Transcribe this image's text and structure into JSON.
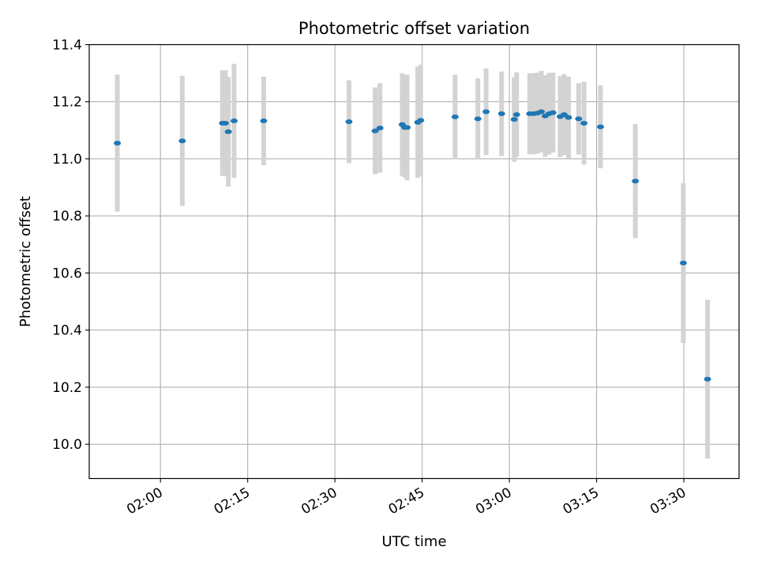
{
  "chart_data": {
    "type": "scatter",
    "title": "Photometric offset variation",
    "xlabel": "UTC time",
    "ylabel": "Photometric offset",
    "xlim": [
      "01:47:45",
      "03:39:30"
    ],
    "ylim": [
      9.88,
      11.4
    ],
    "x_ticks": [
      "02:00",
      "02:15",
      "02:30",
      "02:45",
      "03:00",
      "03:15",
      "03:30"
    ],
    "y_ticks": [
      "10.0",
      "10.2",
      "10.4",
      "10.6",
      "10.8",
      "11.0",
      "11.2",
      "11.4"
    ],
    "grid": true,
    "legend": "none",
    "point_color": "#1f77b4",
    "error_bar_color": "#d3d3d3",
    "points": [
      {
        "x": "01:52:35",
        "y": 11.055,
        "err": 0.24
      },
      {
        "x": "02:03:45",
        "y": 11.063,
        "err": 0.228
      },
      {
        "x": "02:10:40",
        "y": 11.125,
        "err": 0.185
      },
      {
        "x": "02:11:10",
        "y": 11.125,
        "err": 0.185
      },
      {
        "x": "02:11:40",
        "y": 11.095,
        "err": 0.192
      },
      {
        "x": "02:12:40",
        "y": 11.133,
        "err": 0.2
      },
      {
        "x": "02:17:45",
        "y": 11.133,
        "err": 0.155
      },
      {
        "x": "02:32:25",
        "y": 11.13,
        "err": 0.145
      },
      {
        "x": "02:36:55",
        "y": 11.098,
        "err": 0.152
      },
      {
        "x": "02:37:45",
        "y": 11.108,
        "err": 0.157
      },
      {
        "x": "02:41:35",
        "y": 11.12,
        "err": 0.18
      },
      {
        "x": "02:42:00",
        "y": 11.11,
        "err": 0.175
      },
      {
        "x": "02:42:25",
        "y": 11.11,
        "err": 0.185
      },
      {
        "x": "02:44:15",
        "y": 11.128,
        "err": 0.195
      },
      {
        "x": "02:44:45",
        "y": 11.135,
        "err": 0.195
      },
      {
        "x": "02:50:40",
        "y": 11.147,
        "err": 0.148
      },
      {
        "x": "02:54:35",
        "y": 11.14,
        "err": 0.142
      },
      {
        "x": "02:56:00",
        "y": 11.165,
        "err": 0.152
      },
      {
        "x": "02:58:40",
        "y": 11.158,
        "err": 0.148
      },
      {
        "x": "03:00:50",
        "y": 11.138,
        "err": 0.148
      },
      {
        "x": "03:01:15",
        "y": 11.155,
        "err": 0.148
      },
      {
        "x": "03:03:30",
        "y": 11.158,
        "err": 0.142
      },
      {
        "x": "03:04:10",
        "y": 11.158,
        "err": 0.142
      },
      {
        "x": "03:04:50",
        "y": 11.16,
        "err": 0.142
      },
      {
        "x": "03:05:30",
        "y": 11.165,
        "err": 0.143
      },
      {
        "x": "03:06:10",
        "y": 11.15,
        "err": 0.143
      },
      {
        "x": "03:06:50",
        "y": 11.158,
        "err": 0.143
      },
      {
        "x": "03:07:30",
        "y": 11.162,
        "err": 0.14
      },
      {
        "x": "03:08:45",
        "y": 11.148,
        "err": 0.142
      },
      {
        "x": "03:09:25",
        "y": 11.155,
        "err": 0.142
      },
      {
        "x": "03:10:10",
        "y": 11.145,
        "err": 0.143
      },
      {
        "x": "03:11:55",
        "y": 11.14,
        "err": 0.125
      },
      {
        "x": "03:12:50",
        "y": 11.125,
        "err": 0.145
      },
      {
        "x": "03:15:40",
        "y": 11.112,
        "err": 0.145
      },
      {
        "x": "03:21:40",
        "y": 10.922,
        "err": 0.2
      },
      {
        "x": "03:29:55",
        "y": 10.635,
        "err": 0.28
      },
      {
        "x": "03:34:05",
        "y": 10.228,
        "err": 0.278
      }
    ]
  }
}
